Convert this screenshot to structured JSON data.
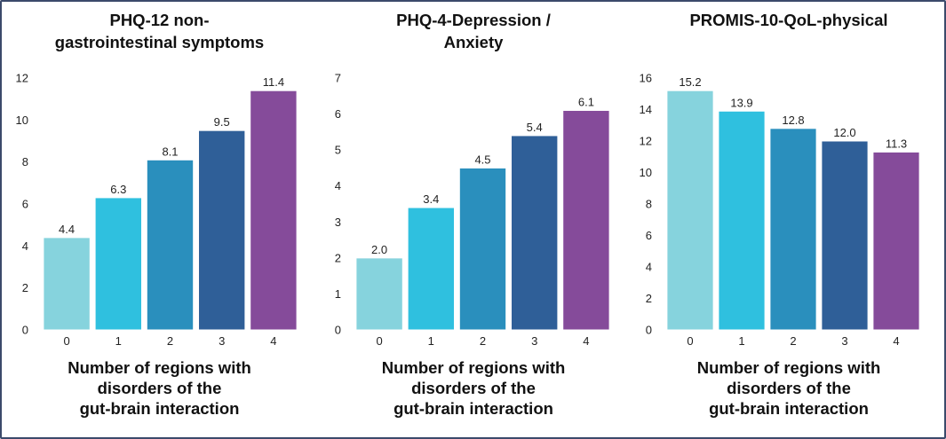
{
  "chart_data": [
    {
      "type": "bar",
      "title": "PHQ-12 non-\ngastrointestinal symptoms",
      "xlabel": "Number of regions with\ndisorders of the\ngut-brain interaction",
      "ylabel": "",
      "categories": [
        "0",
        "1",
        "2",
        "3",
        "4"
      ],
      "values": [
        4.4,
        6.3,
        8.1,
        9.5,
        11.4
      ],
      "value_labels": [
        "4.4",
        "6.3",
        "8.1",
        "9.5",
        "11.4"
      ],
      "ylim": [
        0,
        12
      ],
      "yticks": [
        0,
        2,
        4,
        6,
        8,
        10,
        12
      ],
      "grid": false,
      "colors": [
        "#86d3dd",
        "#2fc0df",
        "#2a8fbd",
        "#2f5f98",
        "#854b9a"
      ]
    },
    {
      "type": "bar",
      "title": "PHQ-4-Depression /\nAnxiety",
      "xlabel": "Number of regions with\ndisorders of the\ngut-brain interaction",
      "ylabel": "",
      "categories": [
        "0",
        "1",
        "2",
        "3",
        "4"
      ],
      "values": [
        2.0,
        3.4,
        4.5,
        5.4,
        6.1
      ],
      "value_labels": [
        "2.0",
        "3.4",
        "4.5",
        "5.4",
        "6.1"
      ],
      "ylim": [
        0,
        7
      ],
      "yticks": [
        0,
        1,
        2,
        3,
        4,
        5,
        6,
        7
      ],
      "grid": false,
      "colors": [
        "#86d3dd",
        "#2fc0df",
        "#2a8fbd",
        "#2f5f98",
        "#854b9a"
      ]
    },
    {
      "type": "bar",
      "title": "PROMIS-10-QoL-physical",
      "xlabel": "Number of regions with\ndisorders of the\ngut-brain interaction",
      "ylabel": "",
      "categories": [
        "0",
        "1",
        "2",
        "3",
        "4"
      ],
      "values": [
        15.2,
        13.9,
        12.8,
        12.0,
        11.3
      ],
      "value_labels": [
        "15.2",
        "13.9",
        "12.8",
        "12.0",
        "11.3"
      ],
      "ylim": [
        0,
        16
      ],
      "yticks": [
        0,
        2,
        4,
        6,
        8,
        10,
        12,
        14,
        16
      ],
      "grid": false,
      "colors": [
        "#86d3dd",
        "#2fc0df",
        "#2a8fbd",
        "#2f5f98",
        "#854b9a"
      ]
    }
  ]
}
